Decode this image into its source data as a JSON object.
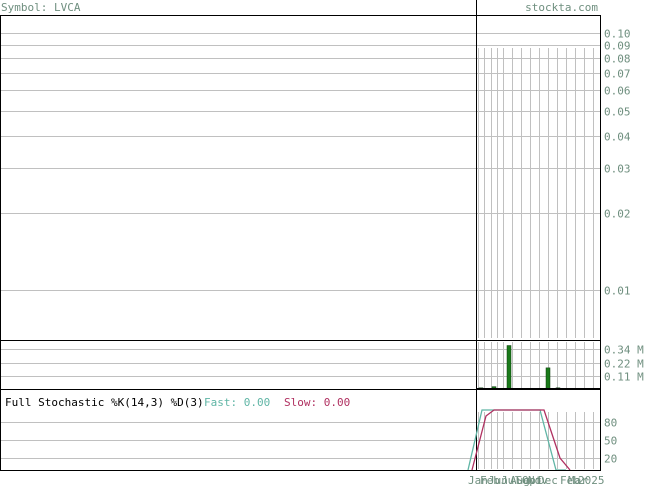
{
  "header": {
    "symbol_label": "Symbol: LVCA",
    "site": "stockta.com"
  },
  "colors": {
    "frame": "#000000",
    "grid": "#c0c0c0",
    "axis_label": "#6f8f7f",
    "volume_bar": "#1a7a1a",
    "fast_line": "#5fb5a5",
    "slow_line": "#b03060"
  },
  "chart_data": [
    {
      "type": "line",
      "panel": "price",
      "scale": "log",
      "ylim": [
        0.0065,
        0.105
      ],
      "y_ticks": [
        "0.10",
        "0.09",
        "0.08",
        "0.07",
        "0.06",
        "0.05",
        "0.04",
        "0.03",
        "0.02",
        "0.01"
      ],
      "y_tick_values": [
        0.1,
        0.09,
        0.08,
        0.07,
        0.06,
        0.05,
        0.04,
        0.03,
        0.02,
        0.01
      ],
      "grid": true
    },
    {
      "type": "bar",
      "panel": "volume",
      "ylim": [
        0,
        0.4
      ],
      "y_ticks": [
        "0.34 M",
        "0.22 M",
        "0.11 M"
      ],
      "y_tick_values": [
        0.34,
        0.22,
        0.11
      ],
      "values_millions": [
        0.01,
        0.02,
        0.37,
        0.18,
        0.01
      ],
      "grid": true
    },
    {
      "type": "line",
      "panel": "stochastic",
      "title": "Full Stochastic %K(14,3) %D(3)",
      "fast_label": "Fast: 0.00",
      "slow_label": "Slow: 0.00",
      "ylim": [
        0,
        100
      ],
      "y_ticks": [
        "80",
        "50",
        "20"
      ],
      "y_tick_values": [
        80,
        50,
        20
      ],
      "series": [
        {
          "values": [
            0,
            100,
            100,
            100,
            100,
            100,
            0,
            0
          ]
        },
        {
          "values": [
            0,
            90,
            100,
            100,
            100,
            100,
            20,
            0
          ]
        }
      ]
    }
  ],
  "x_axis": {
    "labels": [
      "Jan",
      "Feb",
      "Jun",
      "Jul",
      "Aug",
      "Sep",
      "Oct",
      "Nov",
      "Dec",
      "Feb",
      "Mar",
      "2025"
    ]
  }
}
